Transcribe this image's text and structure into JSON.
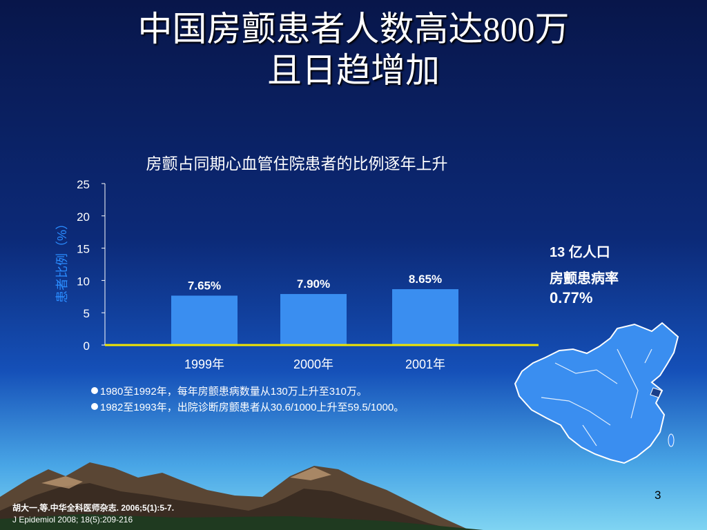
{
  "slide": {
    "title_line1": "中国房颤患者人数高达800万",
    "title_line2": "且日趋增加",
    "page_number": "3"
  },
  "chart_data": {
    "type": "bar",
    "title": "房颤占同期心血管住院患者的比例逐年上升",
    "ylabel": "患者比例（%）",
    "xlabel": "",
    "categories": [
      "1999年",
      "2000年",
      "2001年"
    ],
    "values": [
      7.65,
      7.9,
      8.65
    ],
    "data_labels": [
      "7.65%",
      "7.90%",
      "8.65%"
    ],
    "yticks": [
      "0",
      "5",
      "10",
      "15",
      "20",
      "25"
    ],
    "ylim": [
      0,
      25
    ],
    "grid": false,
    "bar_color": "#3a8ef0",
    "axis_color": "#f2e600"
  },
  "side_note": {
    "line1": "13 亿人口",
    "line2": "房颤患病率",
    "line3": "0.77%"
  },
  "bullets": [
    "1980至1992年，每年房颤患病数量从130万上升至310万。",
    "1982至1993年，出院诊断房颤患者从30.6/1000上升至59.5/1000。"
  ],
  "references": {
    "ref1": "胡大一,等.中华全科医师杂志. 2006;5(1):5-7.",
    "ref2": "J Epidemiol 2008; 18(5):209-216"
  },
  "colors": {
    "map_fill": "#3a8ef0",
    "map_stroke": "#ffffff"
  }
}
